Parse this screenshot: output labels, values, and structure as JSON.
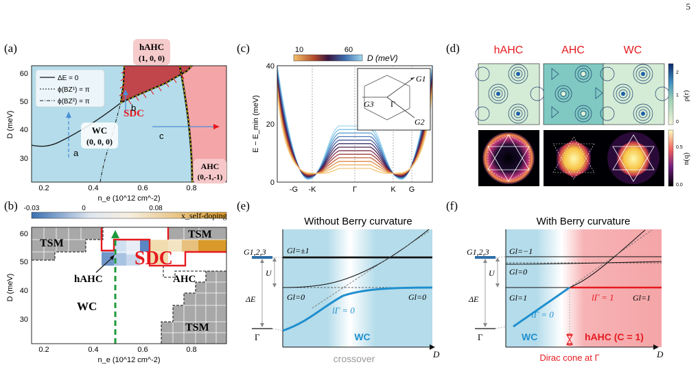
{
  "page_number": "5",
  "panel_labels": {
    "a": "(a)",
    "b": "(b)",
    "c": "(c)",
    "d": "(d)",
    "e": "(e)",
    "f": "(f)"
  },
  "colors": {
    "wc_blue": "#b5dcea",
    "ahc_red": "#f4a5a7",
    "hahc_dark": "#c0464c",
    "sdc_red": "#e5191e",
    "line_blue": "#1f8fcf",
    "tsm_gray": "#a8a8a8"
  },
  "panel_a": {
    "xlabel": "n_e (10^12 cm^-2)",
    "ylabel": "D (meV)",
    "xticks": [
      "0.2",
      "0.4",
      "0.6",
      "0.8"
    ],
    "yticks": [
      "30",
      "40",
      "50",
      "60"
    ],
    "legend": [
      "ΔE = 0",
      "ϕ(BZ¹) = π",
      "ϕ(BZ²) = π"
    ],
    "hahc_box": [
      "hAHC",
      "(1, 0, 0)"
    ],
    "wc_box": [
      "WC",
      "(0, 0, 0)"
    ],
    "ahc_box": [
      "AHC",
      "(0,-1,-1)"
    ],
    "sdc": "SDC",
    "arrows": [
      "a",
      "b",
      "c"
    ]
  },
  "panel_b": {
    "colorbar_ticks": [
      "-0.03",
      "0",
      "0.08"
    ],
    "colorbar_label": "x_self-doping",
    "xlabel": "n_e (10^12 cm^-2)",
    "ylabel": "D (meV)",
    "xticks": [
      "0.2",
      "0.4",
      "0.6",
      "0.8"
    ],
    "yticks": [
      "30",
      "40",
      "50",
      "60"
    ],
    "regions": {
      "tsm1": "TSM",
      "tsm2": "TSM",
      "tsm3": "TSM",
      "sdc": "SDC",
      "hahc": "hAHC",
      "ahc": "AHC",
      "wc": "WC"
    }
  },
  "panel_c": {
    "colorbar_ticks": [
      "10",
      "60"
    ],
    "colorbar_label": "D (meV)",
    "ylabel": "E − E_min (meV)",
    "yticks": [
      "0",
      "20",
      "40"
    ],
    "xticks": [
      "-G",
      "-K",
      "Γ",
      "K",
      "G"
    ],
    "inset_labels": [
      "G1",
      "G2",
      "G3",
      "Γ"
    ]
  },
  "panel_d": {
    "columns": [
      "hAHC",
      "AHC",
      "WC"
    ],
    "top_colorbar_ticks": [
      "0",
      "1",
      "2"
    ],
    "top_colorbar_label": "ρ(r)",
    "bottom_colorbar_ticks": [
      "0.0",
      "0.5"
    ],
    "bottom_colorbar_label": "n(q)"
  },
  "panel_e": {
    "title": "Without Berry curvature",
    "left_labels": {
      "g123": "G1,2,3",
      "gamma": "Γ",
      "U": "U",
      "dE": "ΔE"
    },
    "level_labels": {
      "g_pm1": "Gl=±1",
      "g0_left": "Gl=0",
      "g0_right": "Gl=0"
    },
    "l_gamma": "lΓ = 0",
    "phase": "WC",
    "crossover": "crossover",
    "xaxis": "D"
  },
  "panel_f": {
    "title": "With Berry curvature",
    "left_labels": {
      "g123": "G1,2,3",
      "gamma": "Γ",
      "U": "U",
      "dE": "ΔE"
    },
    "level_labels": {
      "g_m1": "Gl=−1",
      "g0": "Gl=0",
      "g1_left": "Gl=1",
      "g1_right": "Gl=1"
    },
    "l_gamma0": "lΓ = 0",
    "l_gamma1": "lΓ = 1",
    "phase_wc": "WC",
    "phase_hahc": "hAHC (C = 1)",
    "dirac": "Dirac cone at Γ",
    "xaxis": "D"
  }
}
